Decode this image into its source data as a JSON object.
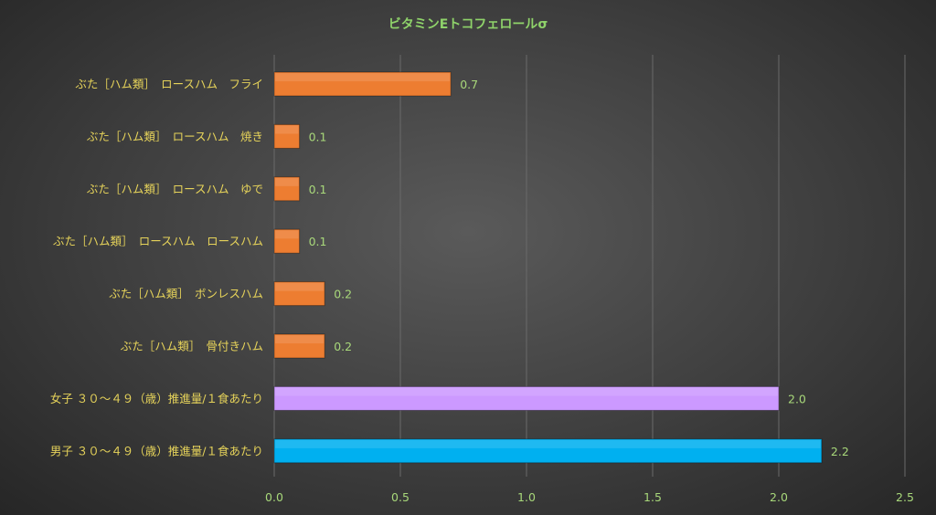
{
  "chart_data": {
    "type": "bar",
    "orientation": "horizontal",
    "title": "ビタミンEトコフェロールσ",
    "categories": [
      "ぶた［ハム類］　ロースハム　フライ",
      "ぶた［ハム類］　ロースハム　焼き",
      "ぶた［ハム類］　ロースハム　ゆで",
      "ぶた［ハム類］　ロースハム　ロースハム",
      "ぶた［ハム類］　ボンレスハム",
      "ぶた［ハム類］　骨付きハム",
      "女子 ３０〜４９（歳）推進量/１食あたり",
      "男子 ３０〜４９（歳）推進量/１食あたり"
    ],
    "values": [
      0.7,
      0.1,
      0.1,
      0.1,
      0.2,
      0.2,
      2.0,
      2.2
    ],
    "value_labels": [
      "0.7",
      "0.1",
      "0.1",
      "0.1",
      "0.2",
      "0.2",
      "2.0",
      "2.2"
    ],
    "plotted_values": [
      0.7,
      0.1,
      0.1,
      0.1,
      0.2,
      0.2,
      2.0,
      2.17
    ],
    "bar_colors": [
      "#ed7d31",
      "#ed7d31",
      "#ed7d31",
      "#ed7d31",
      "#ed7d31",
      "#ed7d31",
      "#cc99ff",
      "#00b0f0"
    ],
    "xlim": [
      0,
      2.5
    ],
    "xticks": [
      "0.0",
      "0.5",
      "1.0",
      "1.5",
      "2.0",
      "2.5"
    ],
    "grid": true,
    "legend": "none"
  }
}
